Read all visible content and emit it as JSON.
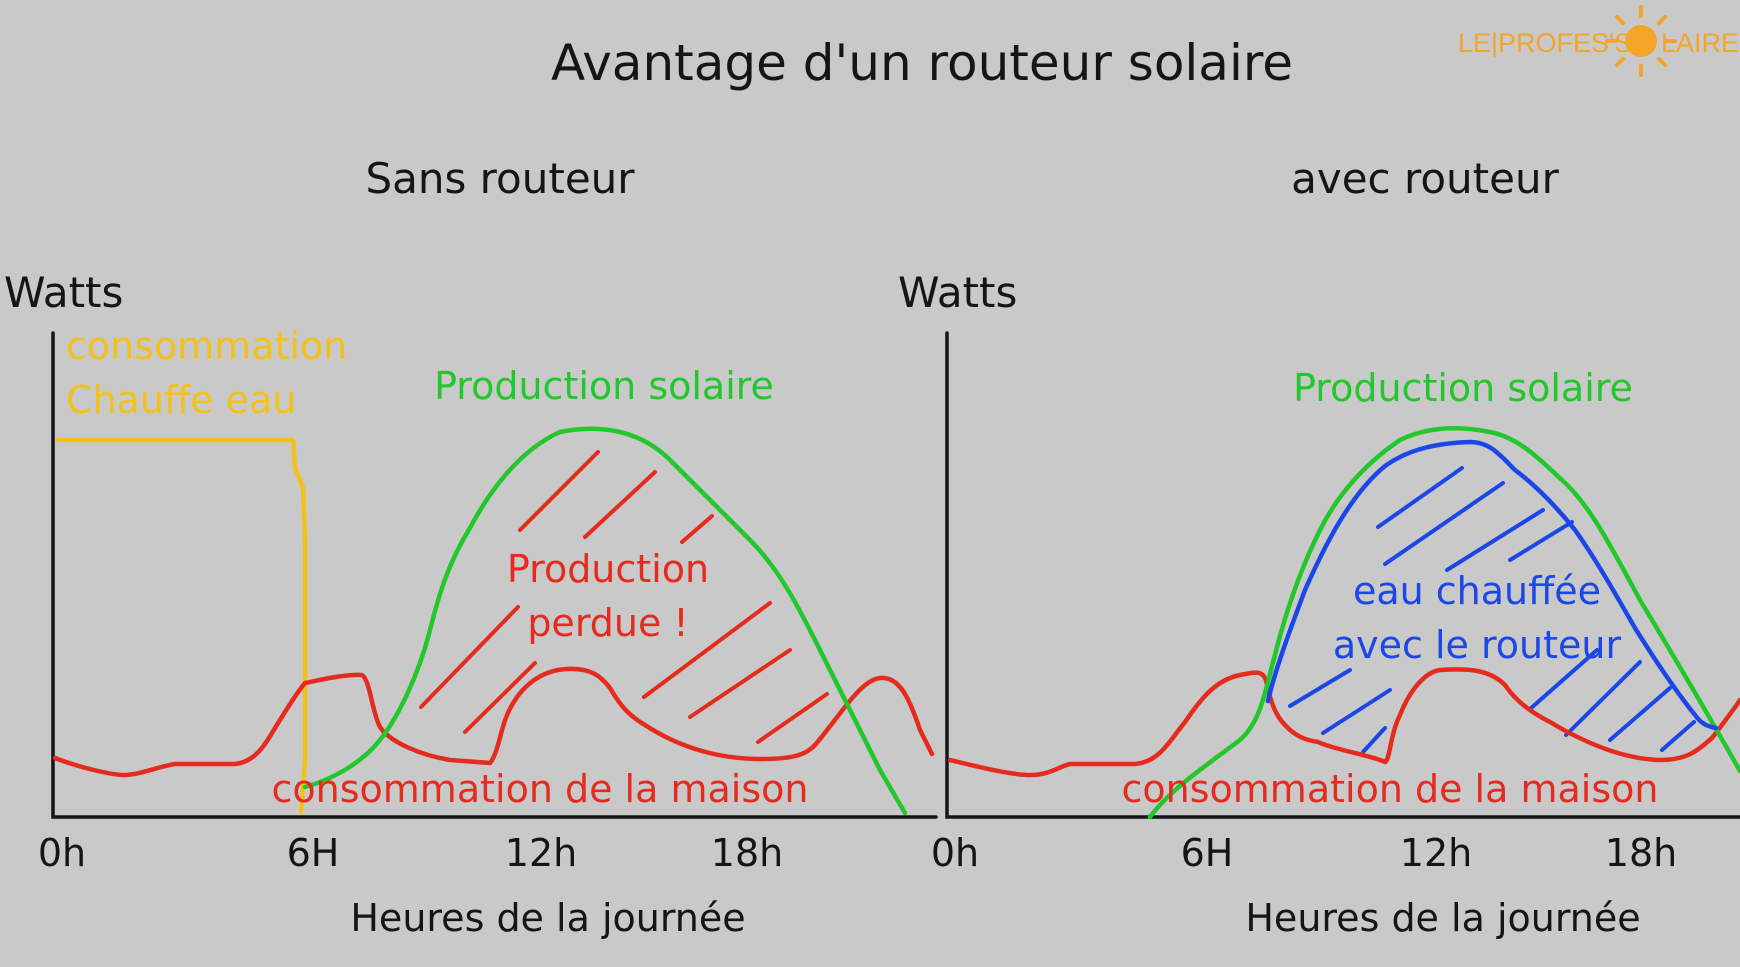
{
  "title": "Avantage d'un routeur solaire",
  "logo": {
    "left": "LE|PROFES'S",
    "right": "LAIRE"
  },
  "panels": [
    {
      "subtitle": "Sans routeur",
      "ylabel": "Watts",
      "xlabel": "Heures de la journée",
      "x_ticks": [
        "0h",
        "6H",
        "12h",
        "18h"
      ],
      "labels": {
        "water_heater_line1": "consommation",
        "water_heater_line2": "Chauffe eau",
        "solar": "Production solaire",
        "lost_line1": "Production",
        "lost_line2": "perdue !",
        "house": "consommation de la maison"
      }
    },
    {
      "subtitle": "avec routeur",
      "ylabel": "Watts",
      "xlabel": "Heures de la journée",
      "x_ticks": [
        "0h",
        "6H",
        "12h",
        "18h"
      ],
      "labels": {
        "solar": "Production solaire",
        "heated_line1": "eau chauffée",
        "heated_line2": "avec le routeur",
        "house": "consommation de la maison"
      }
    }
  ],
  "colors": {
    "background": "#c9c9c9",
    "solar": "#22c72b",
    "house": "#e52b1e",
    "router": "#1a47e6",
    "water_heater": "#f2c21b",
    "logo": "#f3a52a"
  }
}
